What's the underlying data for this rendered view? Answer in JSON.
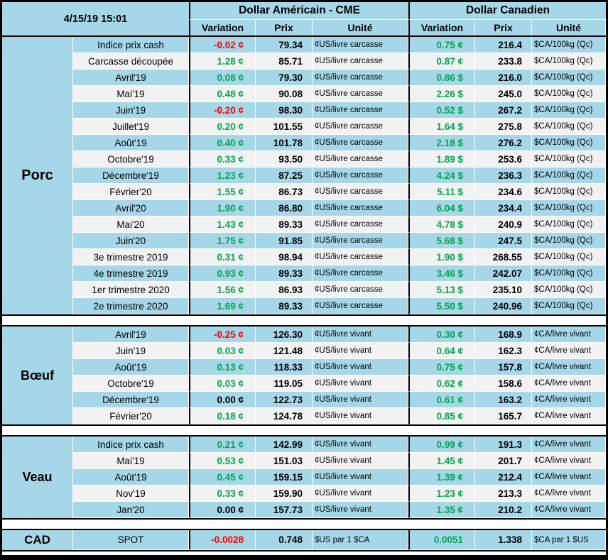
{
  "colors": {
    "positive_green": "#00A550",
    "negative_red": "#FF0000",
    "neutral_black": "#000000",
    "table_blue": "#A6D7E8",
    "alt_row": "#F2F2F2"
  },
  "chart_data": {
    "type": "table",
    "timestamp": "4/15/19 15:01",
    "column_groups": [
      {
        "label": "Dollar Américain - CME",
        "columns": [
          "Variation",
          "Prix",
          "Unité"
        ]
      },
      {
        "label": "Dollar Canadien",
        "columns": [
          "Variation",
          "Prix",
          "Unité"
        ]
      }
    ],
    "sections": [
      {
        "name": "Porc",
        "rows": [
          {
            "label": "Indice prix cash",
            "us_var": "-0.02 ¢",
            "us_cls": "neg",
            "us_prix": "79.34",
            "us_unit": "¢US/livre carcasse",
            "ca_var": "0.75 ¢",
            "ca_cls": "pos",
            "ca_prix": "216.4",
            "ca_unit": "$CA/100kg (Qc)"
          },
          {
            "label": "Carcasse découpée",
            "us_var": "1.28 ¢",
            "us_cls": "pos",
            "us_prix": "85.71",
            "us_unit": "¢US/livre carcasse",
            "ca_var": "0.87 ¢",
            "ca_cls": "pos",
            "ca_prix": "233.8",
            "ca_unit": "$CA/100kg (Qc)"
          },
          {
            "label": "Avril'19",
            "us_var": "0.08 ¢",
            "us_cls": "pos",
            "us_prix": "79.30",
            "us_unit": "¢US/livre carcasse",
            "ca_var": "0.86 $",
            "ca_cls": "pos",
            "ca_prix": "216.0",
            "ca_unit": "$CA/100kg (Qc)"
          },
          {
            "label": "Mai'19",
            "us_var": "0.48 ¢",
            "us_cls": "pos",
            "us_prix": "90.08",
            "us_unit": "¢US/livre carcasse",
            "ca_var": "2.26 $",
            "ca_cls": "pos",
            "ca_prix": "245.0",
            "ca_unit": "$CA/100kg (Qc)"
          },
          {
            "label": "Juin'19",
            "us_var": "-0.20 ¢",
            "us_cls": "neg",
            "us_prix": "98.30",
            "us_unit": "¢US/livre carcasse",
            "ca_var": "0.52 $",
            "ca_cls": "pos",
            "ca_prix": "267.2",
            "ca_unit": "$CA/100kg (Qc)"
          },
          {
            "label": "Juillet'19",
            "us_var": "0.20 ¢",
            "us_cls": "pos",
            "us_prix": "101.55",
            "us_unit": "¢US/livre carcasse",
            "ca_var": "1.64 $",
            "ca_cls": "pos",
            "ca_prix": "275.8",
            "ca_unit": "$CA/100kg (Qc)"
          },
          {
            "label": "Août'19",
            "us_var": "0.40 ¢",
            "us_cls": "pos",
            "us_prix": "101.78",
            "us_unit": "¢US/livre carcasse",
            "ca_var": "2.18 $",
            "ca_cls": "pos",
            "ca_prix": "276.2",
            "ca_unit": "$CA/100kg (Qc)"
          },
          {
            "label": "Octobre'19",
            "us_var": "0.33 ¢",
            "us_cls": "pos",
            "us_prix": "93.50",
            "us_unit": "¢US/livre carcasse",
            "ca_var": "1.89 $",
            "ca_cls": "pos",
            "ca_prix": "253.6",
            "ca_unit": "$CA/100kg (Qc)"
          },
          {
            "label": "Décembre'19",
            "us_var": "1.23 ¢",
            "us_cls": "pos",
            "us_prix": "87.25",
            "us_unit": "¢US/livre carcasse",
            "ca_var": "4.24 $",
            "ca_cls": "pos",
            "ca_prix": "236.3",
            "ca_unit": "$CA/100kg (Qc)"
          },
          {
            "label": "Février'20",
            "us_var": "1.55 ¢",
            "us_cls": "pos",
            "us_prix": "86.73",
            "us_unit": "¢US/livre carcasse",
            "ca_var": "5.11 $",
            "ca_cls": "pos",
            "ca_prix": "234.6",
            "ca_unit": "$CA/100kg (Qc)"
          },
          {
            "label": "Avril'20",
            "us_var": "1.90 ¢",
            "us_cls": "pos",
            "us_prix": "86.80",
            "us_unit": "¢US/livre carcasse",
            "ca_var": "6.04 $",
            "ca_cls": "pos",
            "ca_prix": "234.4",
            "ca_unit": "$CA/100kg (Qc)"
          },
          {
            "label": "Mai'20",
            "us_var": "1.43 ¢",
            "us_cls": "pos",
            "us_prix": "89.33",
            "us_unit": "¢US/livre carcasse",
            "ca_var": "4.78 $",
            "ca_cls": "pos",
            "ca_prix": "240.9",
            "ca_unit": "$CA/100kg (Qc)"
          },
          {
            "label": "Juin'20",
            "us_var": "1.75 ¢",
            "us_cls": "pos",
            "us_prix": "91.85",
            "us_unit": "¢US/livre carcasse",
            "ca_var": "5.68 $",
            "ca_cls": "pos",
            "ca_prix": "247.5",
            "ca_unit": "$CA/100kg (Qc)"
          },
          {
            "label": "3e trimestre 2019",
            "us_var": "0.31 ¢",
            "us_cls": "pos",
            "us_prix": "98.94",
            "us_unit": "¢US/livre carcasse",
            "ca_var": "1.90 $",
            "ca_cls": "pos",
            "ca_prix": "268.55",
            "ca_unit": "$CA/100kg (Qc)"
          },
          {
            "label": "4e trimestre 2019",
            "us_var": "0.93 ¢",
            "us_cls": "pos",
            "us_prix": "89.33",
            "us_unit": "¢US/livre carcasse",
            "ca_var": "3.46 $",
            "ca_cls": "pos",
            "ca_prix": "242.07",
            "ca_unit": "$CA/100kg (Qc)"
          },
          {
            "label": "1er trimestre 2020",
            "us_var": "1.56 ¢",
            "us_cls": "pos",
            "us_prix": "86.93",
            "us_unit": "¢US/livre carcasse",
            "ca_var": "5.13 $",
            "ca_cls": "pos",
            "ca_prix": "235.10",
            "ca_unit": "$CA/100kg (Qc)"
          },
          {
            "label": "2e trimestre 2020",
            "us_var": "1.69 ¢",
            "us_cls": "pos",
            "us_prix": "89.33",
            "us_unit": "¢US/livre carcasse",
            "ca_var": "5.50 $",
            "ca_cls": "pos",
            "ca_prix": "240.96",
            "ca_unit": "$CA/100kg (Qc)"
          }
        ]
      },
      {
        "name": "Bœuf",
        "rows": [
          {
            "label": "Avril'19",
            "us_var": "-0.25 ¢",
            "us_cls": "neg",
            "us_prix": "126.30",
            "us_unit": "¢US/livre vivant",
            "ca_var": "0.30 ¢",
            "ca_cls": "pos",
            "ca_prix": "168.9",
            "ca_unit": "¢CA/livre vivant"
          },
          {
            "label": "Juin'19",
            "us_var": "0.03 ¢",
            "us_cls": "pos",
            "us_prix": "121.48",
            "us_unit": "¢US/livre vivant",
            "ca_var": "0.64 ¢",
            "ca_cls": "pos",
            "ca_prix": "162.3",
            "ca_unit": "¢CA/livre vivant"
          },
          {
            "label": "Août'19",
            "us_var": "0.13 ¢",
            "us_cls": "pos",
            "us_prix": "118.33",
            "us_unit": "¢US/livre vivant",
            "ca_var": "0.75 ¢",
            "ca_cls": "pos",
            "ca_prix": "157.8",
            "ca_unit": "¢CA/livre vivant"
          },
          {
            "label": "Octobre'19",
            "us_var": "0.03 ¢",
            "us_cls": "pos",
            "us_prix": "119.05",
            "us_unit": "¢US/livre vivant",
            "ca_var": "0.62 ¢",
            "ca_cls": "pos",
            "ca_prix": "158.6",
            "ca_unit": "¢CA/livre vivant"
          },
          {
            "label": "Décembre'19",
            "us_var": "0.00 ¢",
            "us_cls": "zero",
            "us_prix": "122.73",
            "us_unit": "¢US/livre vivant",
            "ca_var": "0.61 ¢",
            "ca_cls": "pos",
            "ca_prix": "163.2",
            "ca_unit": "¢CA/livre vivant"
          },
          {
            "label": "Février'20",
            "us_var": "0.18 ¢",
            "us_cls": "pos",
            "us_prix": "124.78",
            "us_unit": "¢US/livre vivant",
            "ca_var": "0.85 ¢",
            "ca_cls": "pos",
            "ca_prix": "165.7",
            "ca_unit": "¢CA/livre vivant"
          }
        ]
      },
      {
        "name": "Veau",
        "rows": [
          {
            "label": "Indice prix cash",
            "us_var": "0.21 ¢",
            "us_cls": "pos",
            "us_prix": "142.99",
            "us_unit": "¢US/livre vivant",
            "ca_var": "0.99 ¢",
            "ca_cls": "pos",
            "ca_prix": "191.3",
            "ca_unit": "¢CA/livre vivant"
          },
          {
            "label": "Mai'19",
            "us_var": "0.53 ¢",
            "us_cls": "pos",
            "us_prix": "151.03",
            "us_unit": "¢US/livre vivant",
            "ca_var": "1.45 ¢",
            "ca_cls": "pos",
            "ca_prix": "201.7",
            "ca_unit": "¢CA/livre vivant"
          },
          {
            "label": "Août'19",
            "us_var": "0.45 ¢",
            "us_cls": "pos",
            "us_prix": "159.15",
            "us_unit": "¢US/livre vivant",
            "ca_var": "1.39 ¢",
            "ca_cls": "pos",
            "ca_prix": "212.4",
            "ca_unit": "¢CA/livre vivant"
          },
          {
            "label": "Nov'19",
            "us_var": "0.33 ¢",
            "us_cls": "pos",
            "us_prix": "159.90",
            "us_unit": "¢US/livre vivant",
            "ca_var": "1.23 ¢",
            "ca_cls": "pos",
            "ca_prix": "213.3",
            "ca_unit": "¢CA/livre vivant"
          },
          {
            "label": "Jan'20",
            "us_var": "0.00 ¢",
            "us_cls": "zero",
            "us_prix": "157.73",
            "us_unit": "¢US/livre vivant",
            "ca_var": "1.35 ¢",
            "ca_cls": "pos",
            "ca_prix": "210.2",
            "ca_unit": "¢CA/livre vivant"
          }
        ]
      },
      {
        "name": "CAD",
        "rows": [
          {
            "label": "SPOT",
            "us_var": "-0.0028",
            "us_cls": "neg",
            "us_prix": "0.748",
            "us_unit": "$US par 1 $CA",
            "ca_var": "0.0051",
            "ca_cls": "pos",
            "ca_prix": "1.338",
            "ca_unit": "$CA par 1 $US"
          }
        ]
      }
    ]
  }
}
